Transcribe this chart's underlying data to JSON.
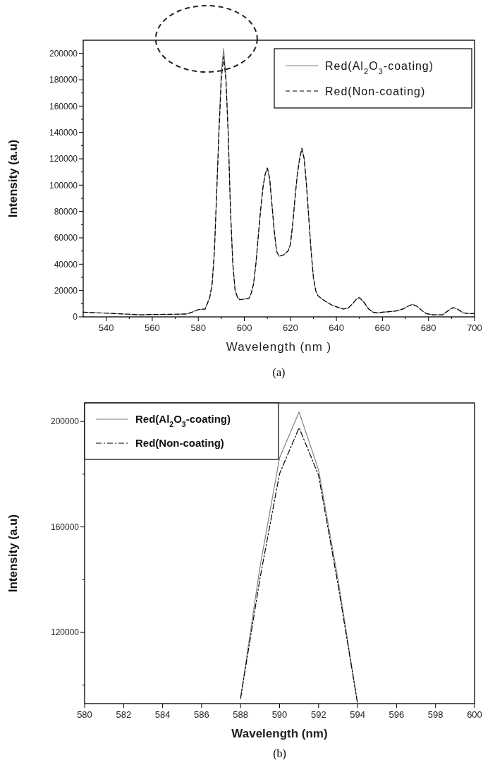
{
  "chart_data": [
    {
      "type": "line",
      "xlabel": "Wavelength (nm )",
      "ylabel": "Intensity (a.u)",
      "annotations": [
        "(a)"
      ],
      "legend": "top right",
      "xlim": [
        530,
        700
      ],
      "ylim": [
        0,
        210000
      ],
      "xticks": [
        540,
        {
          "value": 550,
          "label": null
        },
        560,
        {
          "value": 570,
          "label": null
        },
        580,
        {
          "value": 590,
          "label": null
        },
        600,
        {
          "value": 610,
          "label": null
        },
        620,
        {
          "value": 630,
          "label": null
        },
        640,
        {
          "value": 650,
          "label": null
        },
        660,
        {
          "value": 670,
          "label": null
        },
        680,
        {
          "value": 690,
          "label": null
        },
        700
      ],
      "yticks": [
        0,
        {
          "value": 10000,
          "label": null
        },
        20000,
        {
          "value": 30000,
          "label": null
        },
        40000,
        {
          "value": 50000,
          "label": null
        },
        60000,
        {
          "value": 70000,
          "label": null
        },
        80000,
        {
          "value": 90000,
          "label": null
        },
        100000,
        {
          "value": 110000,
          "label": null
        },
        120000,
        {
          "value": 130000,
          "label": null
        },
        140000,
        {
          "value": 150000,
          "label": null
        },
        160000,
        {
          "value": 170000,
          "label": null
        },
        180000,
        {
          "value": 190000,
          "label": null
        },
        200000
      ],
      "x": [
        530,
        540,
        550,
        555,
        560,
        570,
        575,
        578,
        580,
        583,
        585,
        586,
        587,
        588,
        589,
        590,
        591,
        592,
        593,
        594,
        595,
        596,
        597,
        598,
        600,
        602,
        603,
        604,
        605,
        606,
        607,
        608,
        609,
        610,
        611,
        612,
        613,
        614,
        615,
        617,
        619,
        620,
        621,
        622,
        623,
        624,
        625,
        626,
        627,
        628,
        629,
        630,
        631,
        632,
        635,
        638,
        641,
        643,
        645,
        647,
        649,
        650,
        652,
        654,
        656,
        658,
        660,
        663,
        666,
        669,
        671,
        673,
        675,
        677,
        679,
        682,
        686,
        688,
        690,
        691,
        693,
        695,
        698,
        700
      ],
      "series": [
        {
          "name": "Red(Al$_{2}$O$_{3}$-coating)",
          "color": "#808080",
          "line_style": "solid",
          "values": [
            3500,
            2800,
            2000,
            1500,
            1800,
            2000,
            2200,
            4000,
            5500,
            6000,
            15000,
            25000,
            50000,
            95000,
            145000,
            186200,
            203600,
            181600,
            140000,
            80000,
            40000,
            20000,
            15000,
            13000,
            13500,
            14000,
            18000,
            25000,
            40000,
            60000,
            80000,
            97000,
            108000,
            113000,
            105000,
            85000,
            65000,
            50000,
            46000,
            47000,
            50000,
            55000,
            70000,
            90000,
            108000,
            120000,
            128000,
            120000,
            100000,
            75000,
            50000,
            30000,
            20000,
            16000,
            12000,
            9000,
            7000,
            6000,
            6500,
            10000,
            14000,
            14500,
            11000,
            6000,
            3500,
            3000,
            3500,
            4000,
            4500,
            6000,
            8000,
            9500,
            8000,
            5000,
            2500,
            1500,
            1500,
            4000,
            6500,
            7000,
            5500,
            3000,
            2500,
            2500
          ]
        },
        {
          "name": "Red(Non-coating)",
          "color": "#000000",
          "line_style": "dashed",
          "values": [
            3500,
            2800,
            2000,
            1500,
            1800,
            2000,
            2200,
            4000,
            5500,
            6000,
            15000,
            25000,
            50000,
            95000,
            140700,
            180200,
            197600,
            179600,
            138000,
            80000,
            40000,
            20000,
            15000,
            13000,
            13500,
            14000,
            18000,
            25000,
            40000,
            60000,
            80000,
            97000,
            108000,
            113000,
            105000,
            85000,
            65000,
            50000,
            46000,
            47000,
            50000,
            55000,
            70000,
            90000,
            108000,
            120000,
            128000,
            120000,
            100000,
            75000,
            50000,
            30000,
            20000,
            16000,
            12000,
            9000,
            7000,
            6000,
            6500,
            10000,
            14000,
            14500,
            11000,
            6000,
            3500,
            3000,
            3500,
            4000,
            4500,
            6000,
            8000,
            9500,
            8000,
            5000,
            2500,
            1500,
            1500,
            4000,
            6500,
            7000,
            5500,
            3000,
            2500,
            2500
          ]
        }
      ]
    },
    {
      "type": "line",
      "xlabel": "Wavelength (nm)",
      "ylabel": "Intensity (a.u)",
      "annotations": [
        "(b)"
      ],
      "legend": "top left",
      "xlim": [
        580,
        600
      ],
      "ylim": [
        93000,
        207000
      ],
      "xticks": [
        580,
        582,
        584,
        586,
        588,
        590,
        592,
        594,
        596,
        598,
        600
      ],
      "yticks": [
        {
          "value": 100000,
          "label": null
        },
        120000,
        {
          "value": 140000,
          "label": null
        },
        160000,
        {
          "value": 180000,
          "label": null
        },
        200000
      ],
      "x": [
        588,
        589,
        590,
        591,
        592,
        593,
        594
      ],
      "series": [
        {
          "name": "Red(Al$_{2}$O$_{3}$-coating)",
          "color": "#808080",
          "line_style": "solid",
          "values": [
            95000,
            145000,
            186200,
            203600,
            181600,
            140000,
            93000
          ]
        },
        {
          "name": "Red(Non-coating)",
          "color": "#000000",
          "line_style": "dashdot",
          "values": [
            95000,
            140700,
            180200,
            197600,
            179600,
            138000,
            93000
          ]
        }
      ]
    }
  ]
}
